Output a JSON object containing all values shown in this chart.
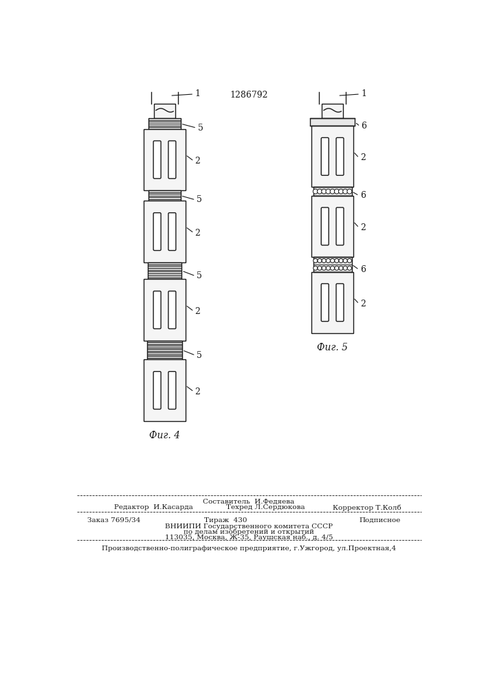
{
  "title": "1286792",
  "fig4_label": "Фиг. 4",
  "fig5_label": "Фиг. 5",
  "bg_color": "#ffffff",
  "line_color": "#1a1a1a",
  "seg_fill": "#f5f5f5",
  "coup_fill": "#d0d0d0",
  "footer_line0": "Составитель  И.Федяева",
  "footer_line1a": "Редактор  И.Касарда",
  "footer_line1b": "Техред Л.Сердюкова",
  "footer_line1c": "Корректор Т.Колб",
  "footer_line2a": "Заказ 7695/34",
  "footer_line2b": "Тираж  430",
  "footer_line2c": "Подписное",
  "footer_line3": "ВНИИПИ Государственного комитета СССР",
  "footer_line4": "по делам изобретений и открытий",
  "footer_line5": "113035, Москва, Ж-35, Раушская наб., д. 4/5",
  "footer_line6": "Производственно-полиграфическое предприятие, г.Ужгород, ул.Проектная,4"
}
